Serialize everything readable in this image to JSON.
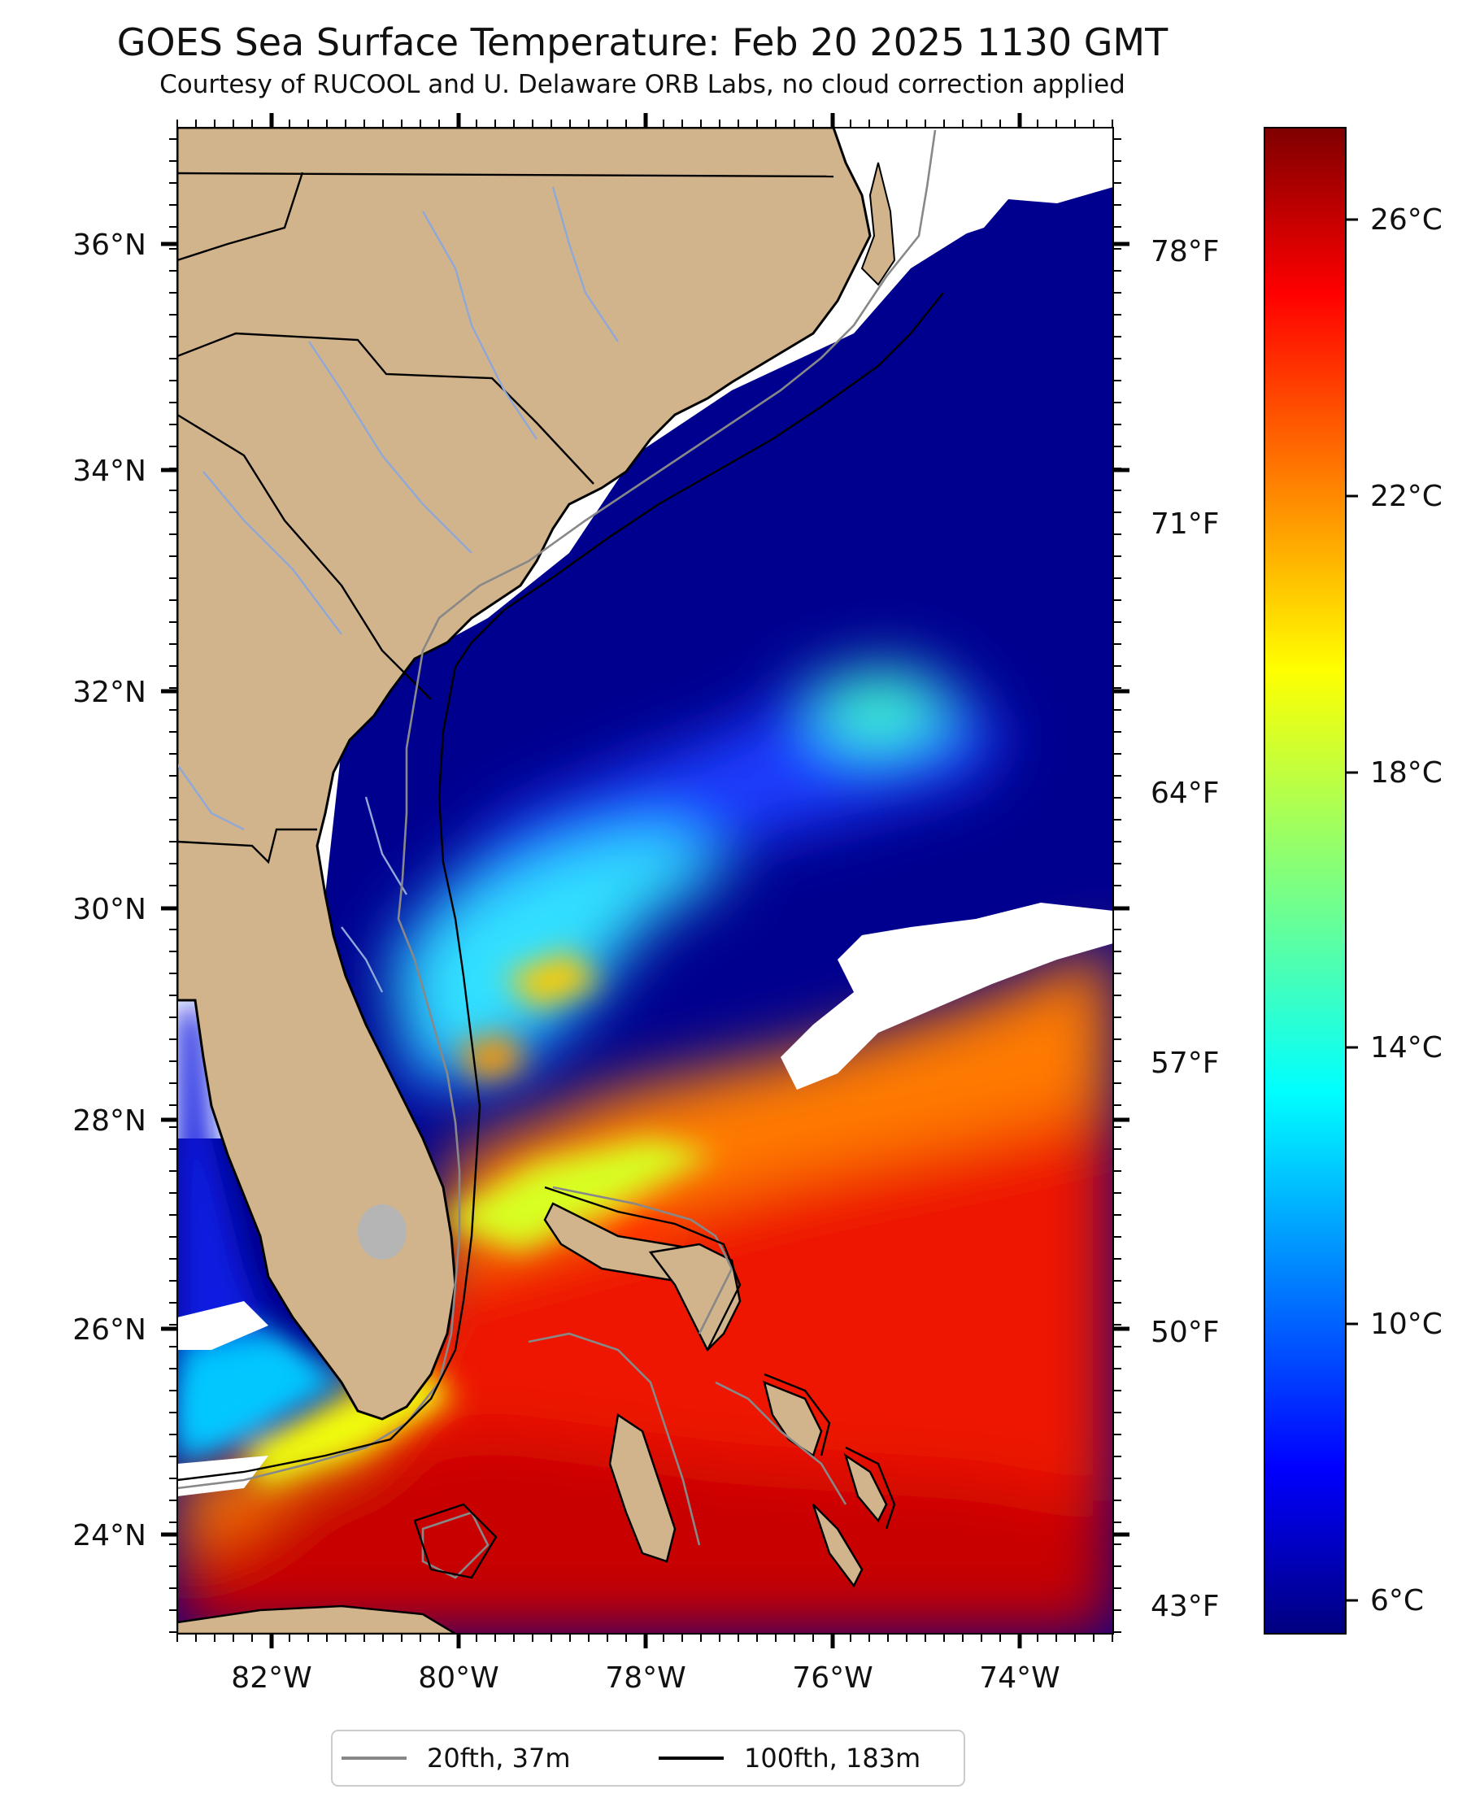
{
  "title": "GOES Sea Surface Temperature: Feb 20 2025 1130 GMT",
  "subtitle": "Courtesy of RUCOOL and U. Delaware ORB Labs, no cloud correction applied",
  "lon_labels": [
    "82°W",
    "80°W",
    "78°W",
    "76°W",
    "74°W"
  ],
  "lat_labels": [
    "36°N",
    "34°N",
    "32°N",
    "30°N",
    "28°N",
    "26°N",
    "24°N"
  ],
  "fahrenheit_labels": [
    "78°F",
    "71°F",
    "64°F",
    "57°F",
    "50°F",
    "43°F"
  ],
  "colorbar": {
    "labels": [
      "26°C",
      "22°C",
      "18°C",
      "14°C",
      "10°C",
      "6°C"
    ],
    "range_c": [
      5.5,
      27.5
    ],
    "colormap": "jet"
  },
  "legend": [
    {
      "label": "20fth, 37m",
      "color": "#888888"
    },
    {
      "label": "100fth, 183m",
      "color": "#000000"
    }
  ],
  "colors": {
    "land": "#d2b48c",
    "cloud": "#ffffff",
    "lake": "#b5b5b5",
    "rivers": "#8fa8d8"
  }
}
